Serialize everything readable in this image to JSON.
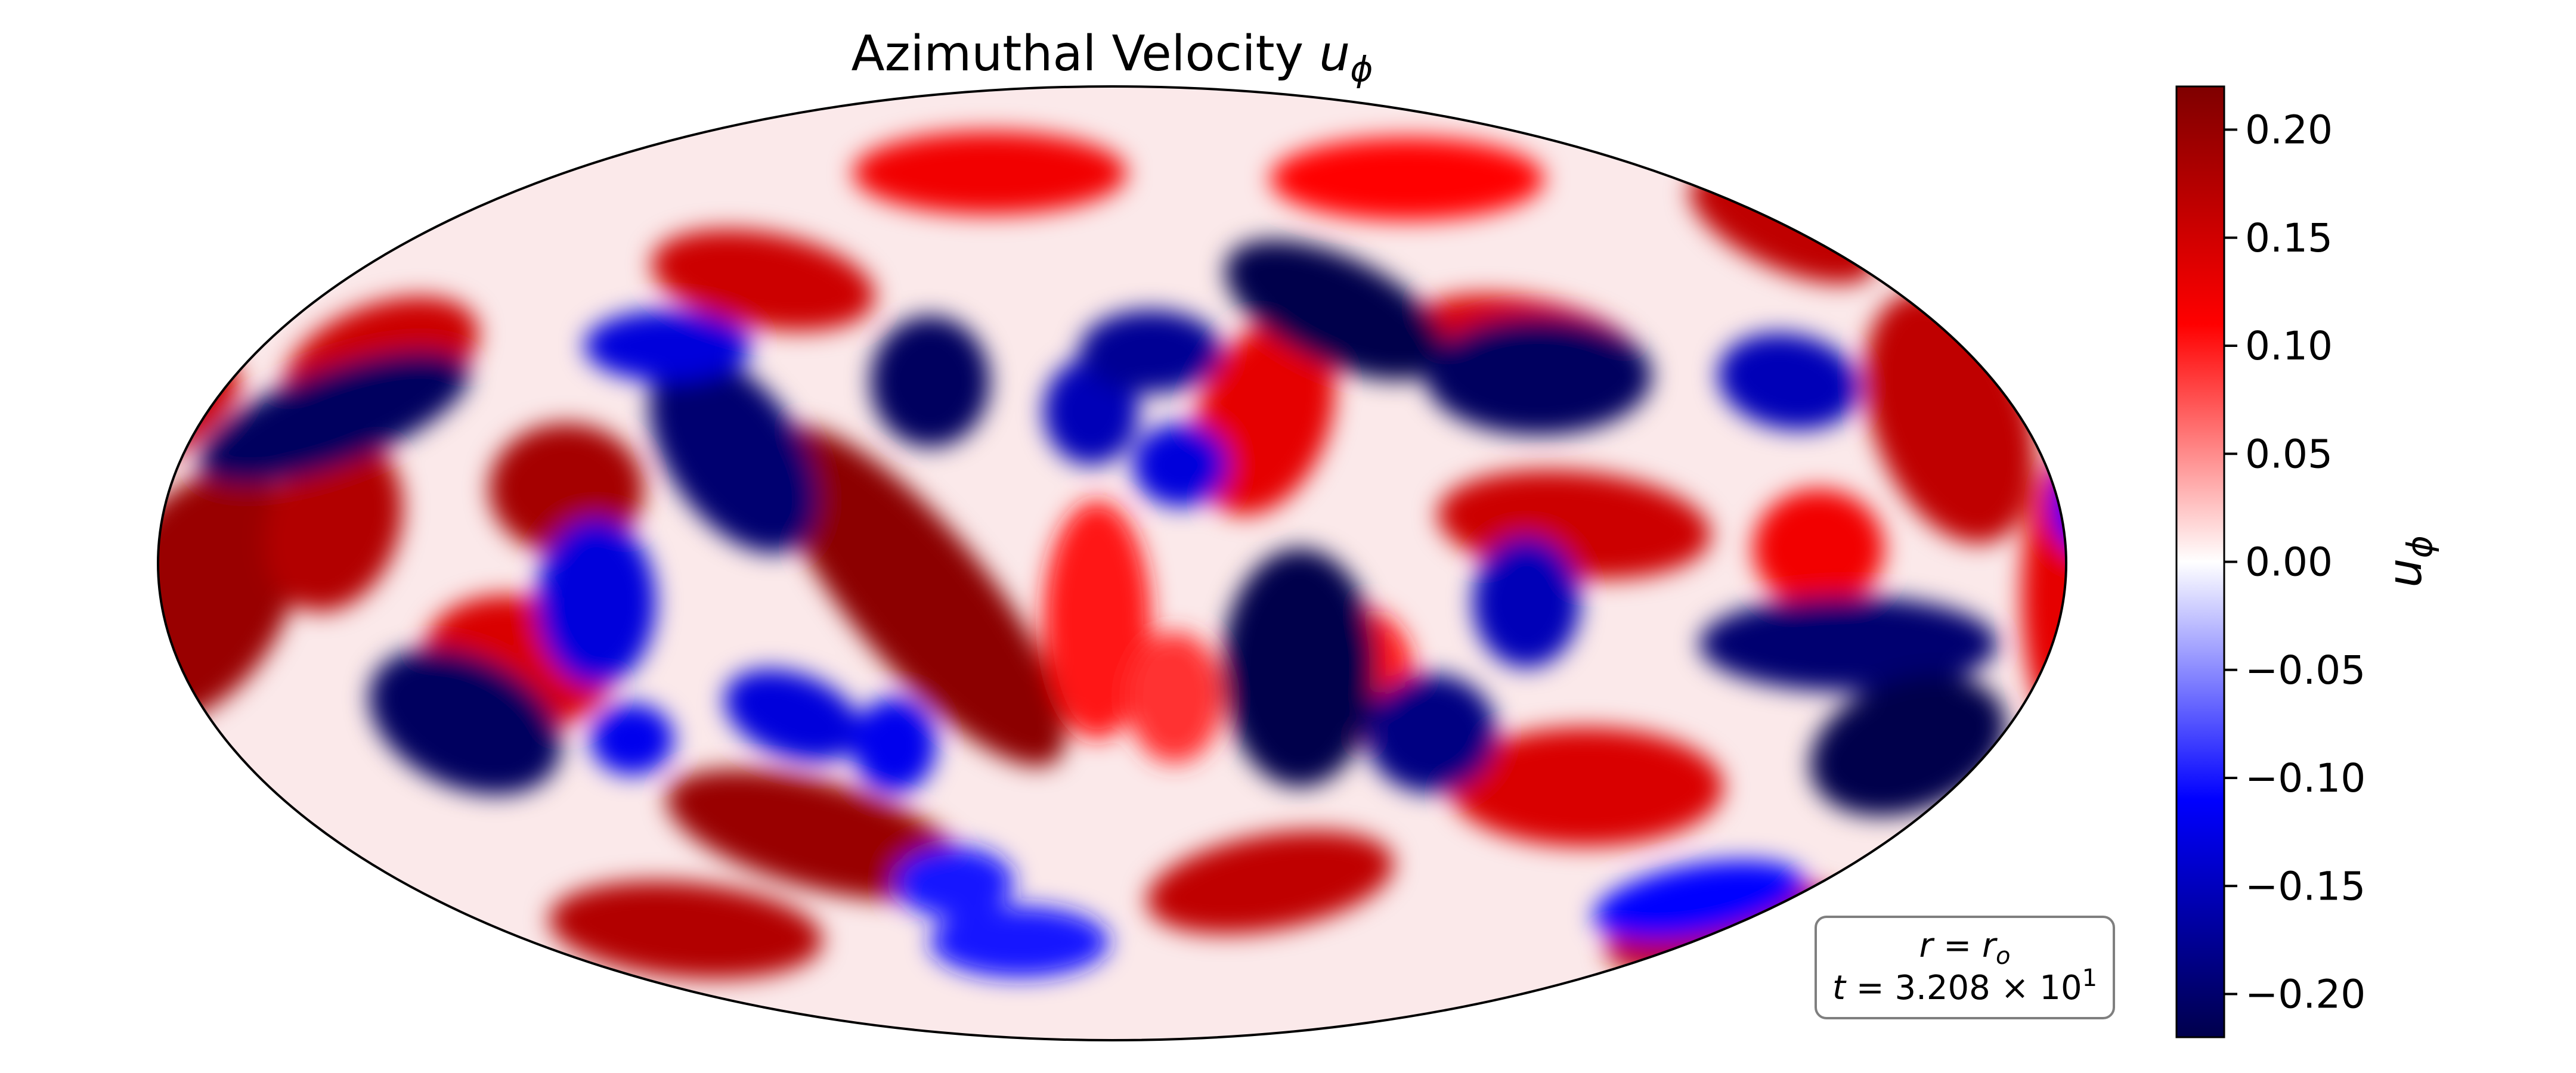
{
  "chart_data": {
    "type": "heatmap",
    "projection": "mollweide",
    "title": "Azimuthal Velocity u_ϕ",
    "title_parts": {
      "text": "Azimuthal Velocity ",
      "symbol": "u",
      "subscript": "ϕ"
    },
    "colormap": "seismic",
    "colors": {
      "min": "#00004c",
      "low": "#0000ff",
      "mid": "#ffffff",
      "high": "#ff0000",
      "max": "#7f0000"
    },
    "value_range": [
      -0.22,
      0.22
    ],
    "colorbar": {
      "label": "u_ϕ",
      "label_parts": {
        "symbol": "u",
        "subscript": "ϕ"
      },
      "ticks": [
        0.2,
        0.15,
        0.1,
        0.05,
        0.0,
        -0.05,
        -0.1,
        -0.15,
        -0.2
      ],
      "tick_labels": [
        "0.20",
        "0.15",
        "0.10",
        "0.05",
        "0.00",
        "−0.05",
        "−0.10",
        "−0.15",
        "−0.20"
      ]
    },
    "annotation": {
      "line1": "r = r_o",
      "line1_parts": {
        "lhs": "r",
        "eq": " = ",
        "rhs": "r",
        "rhs_sub": "o"
      },
      "line2": "t = 3.208 × 10^1",
      "line2_parts": {
        "lhs": "t",
        "eq": " = ",
        "mantissa": "3.208 × 10",
        "exponent": "1"
      }
    },
    "grid": false
  }
}
